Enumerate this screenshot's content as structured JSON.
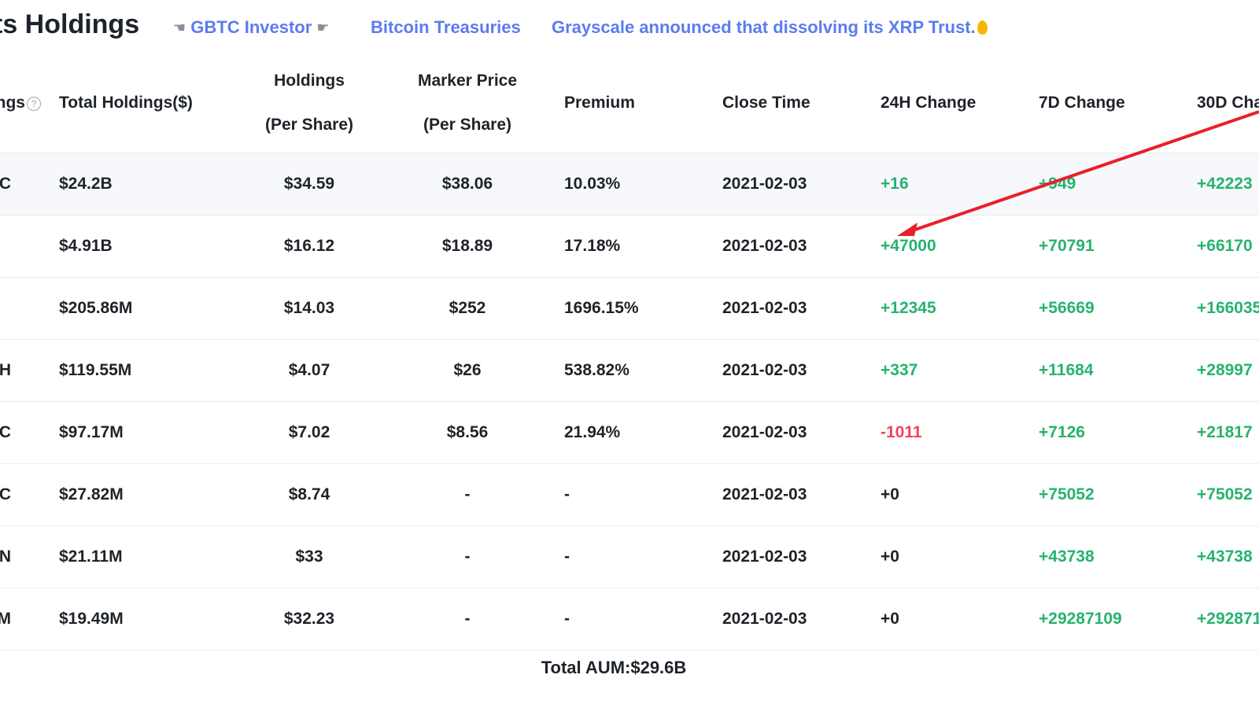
{
  "header": {
    "title": "ts Holdings",
    "links": [
      {
        "label": "GBTC Investor"
      },
      {
        "label": "Bitcoin Treasuries"
      },
      {
        "label": "Grayscale announced that dissolving its XRP Trust."
      }
    ]
  },
  "table": {
    "columns": {
      "holdings": "ngs",
      "total": "Total Holdings($)",
      "hold_per_share_1": "Holdings",
      "hold_per_share_2": "(Per Share)",
      "market_price_1": "Marker Price",
      "market_price_2": "(Per Share)",
      "premium": "Premium",
      "close_time": "Close Time",
      "change_24h": "24H Change",
      "change_7d": "7D Change",
      "change_30d": "30D Cha"
    },
    "rows": [
      {
        "asset": "'C",
        "total": "$24.2B",
        "hps": "$34.59",
        "mp": "$38.06",
        "premium": "10.03%",
        "close": "2021-02-03",
        "c24": "+16",
        "c7": "+949",
        "c30": "+42223"
      },
      {
        "asset": "",
        "total": "$4.91B",
        "hps": "$16.12",
        "mp": "$18.89",
        "premium": "17.18%",
        "close": "2021-02-03",
        "c24": "+47000",
        "c7": "+70791",
        "c30": "+66170"
      },
      {
        "asset": "",
        "total": "$205.86M",
        "hps": "$14.03",
        "mp": "$252",
        "premium": "1696.15%",
        "close": "2021-02-03",
        "c24": "+12345",
        "c7": "+56669",
        "c30": "+166035"
      },
      {
        "asset": "H",
        "total": "$119.55M",
        "hps": "$4.07",
        "mp": "$26",
        "premium": "538.82%",
        "close": "2021-02-03",
        "c24": "+337",
        "c7": "+11684",
        "c30": "+28997"
      },
      {
        "asset": "C",
        "total": "$97.17M",
        "hps": "$7.02",
        "mp": "$8.56",
        "premium": "21.94%",
        "close": "2021-02-03",
        "c24": "-1011",
        "c7": "+7126",
        "c30": "+21817"
      },
      {
        "asset": "C",
        "total": "$27.82M",
        "hps": "$8.74",
        "mp": "-",
        "premium": "-",
        "close": "2021-02-03",
        "c24": "+0",
        "c7": "+75052",
        "c30": "+75052"
      },
      {
        "asset": "N",
        "total": "$21.11M",
        "hps": "$33",
        "mp": "-",
        "premium": "-",
        "close": "2021-02-03",
        "c24": "+0",
        "c7": "+43738",
        "c30": "+43738"
      },
      {
        "asset": "M",
        "total": "$19.49M",
        "hps": "$32.23",
        "mp": "-",
        "premium": "-",
        "close": "2021-02-03",
        "c24": "+0",
        "c7": "+29287109",
        "c30": "+292871"
      }
    ]
  },
  "footer": {
    "total_aum": "Total AUM:$29.6B"
  },
  "colors": {
    "positive": "#26b36f",
    "negative": "#f0435c",
    "link": "#5b7cf0",
    "arrow": "#e8202a"
  }
}
